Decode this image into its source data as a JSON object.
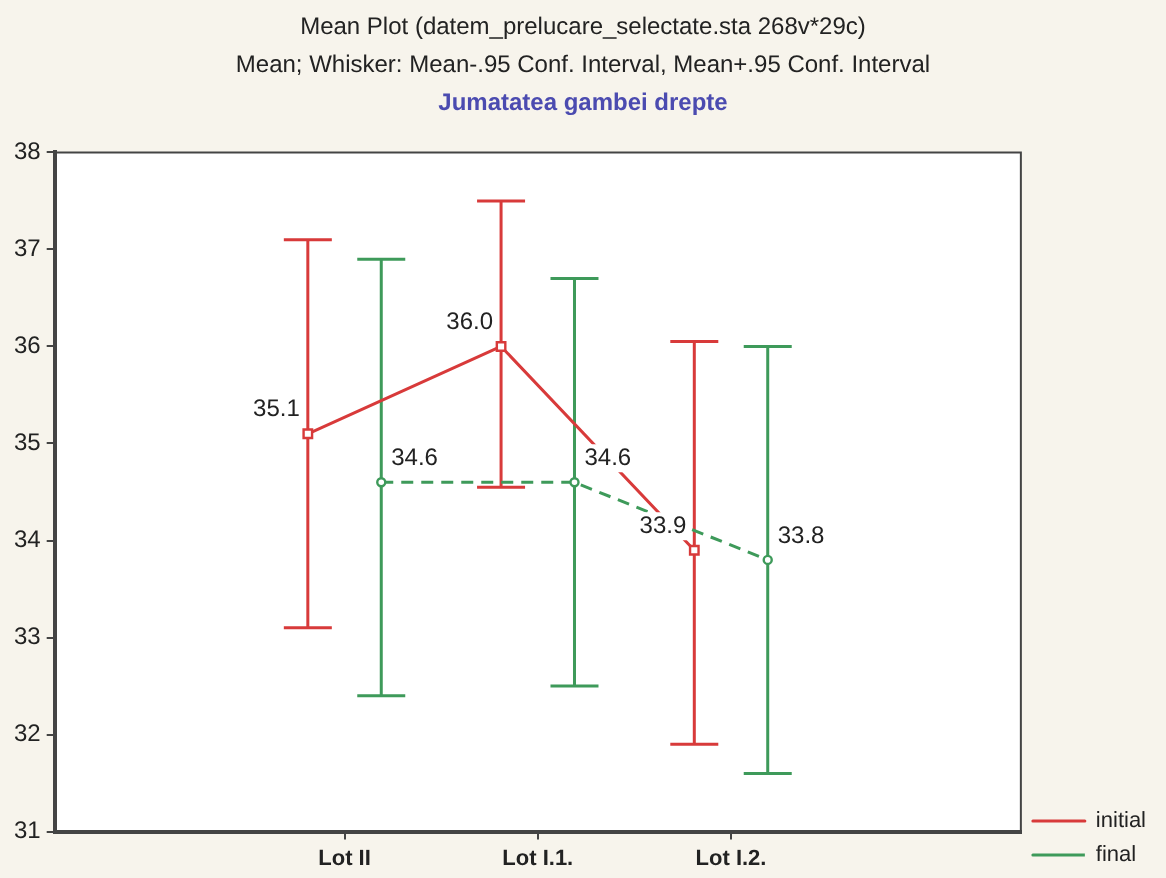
{
  "chart_data": {
    "type": "line",
    "title": "Mean Plot (datem_prelucare_selectate.sta 268v*29c)",
    "subtitle": "Mean;  Whisker: Mean-.95 Conf. Interval, Mean+.95 Conf. Interval",
    "annotations": [
      "Jumatatea gambei drepte"
    ],
    "categories": [
      "Lot II",
      "Lot I.1.",
      "Lot I.2."
    ],
    "series": [
      {
        "name": "initial",
        "color": "#d83a3a",
        "values": [
          35.1,
          36.0,
          33.9
        ],
        "value_labels": [
          "35.1",
          "36.0",
          "33.9"
        ],
        "errors": [
          [
            33.1,
            37.1
          ],
          [
            34.55,
            37.5
          ],
          [
            31.9,
            36.05
          ]
        ],
        "marker": "square",
        "line_style": "solid"
      },
      {
        "name": "final",
        "color": "#3e9a5a",
        "values": [
          34.6,
          34.6,
          33.8
        ],
        "value_labels": [
          "34.6",
          "34.6",
          "33.8"
        ],
        "errors": [
          [
            32.4,
            36.9
          ],
          [
            32.5,
            36.7
          ],
          [
            31.6,
            36.0
          ]
        ],
        "marker": "circle",
        "line_style": "dashed"
      }
    ],
    "ylim": [
      31,
      38
    ],
    "yticks": [
      31,
      32,
      33,
      34,
      35,
      36,
      37,
      38
    ],
    "grid": false,
    "legend": "bottom right"
  }
}
